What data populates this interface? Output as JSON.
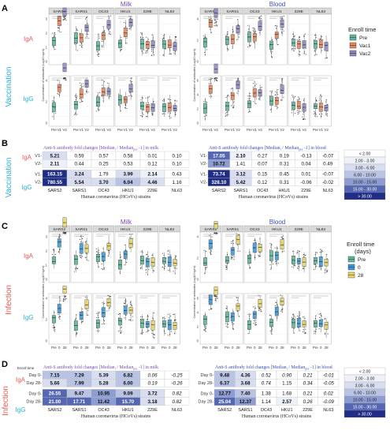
{
  "panels": {
    "A": {
      "letter": "A",
      "side": "Vaccination",
      "milk_title": "Milk",
      "blood_title": "Blood"
    },
    "B": {
      "letter": "B",
      "side": "Vaccination"
    },
    "C": {
      "letter": "C",
      "side": "Infection",
      "milk_title": "Milk",
      "blood_title": "Blood"
    },
    "D": {
      "letter": "D",
      "side": "Infection",
      "enroll_time_label": "Enroll time"
    }
  },
  "strains": [
    "SARS2",
    "SARS1",
    "OC43",
    "HKU1",
    "229E",
    "NL63"
  ],
  "row_labels": {
    "iga": "IgA",
    "igg": "IgG"
  },
  "y_axis_label": "Concentration of antibodies (Log10 ng/ml)",
  "x_axis_label": "Human coronavirus (HCoVs) strains",
  "x_ticks_vac": [
    "Pre",
    "V1",
    "V2"
  ],
  "x_ticks_inf": [
    "Pre",
    "0",
    "28"
  ],
  "legend_A": {
    "title": "Enroll time",
    "items": [
      {
        "label": "Pre",
        "color": "#5fb89a"
      },
      {
        "label": "Vac1",
        "color": "#e8875a"
      },
      {
        "label": "Vac2",
        "color": "#8e87c0"
      }
    ]
  },
  "legend_C": {
    "title": "Enroll time",
    "title2": "(days)",
    "items": [
      {
        "label": "Pre",
        "color": "#5fb89a"
      },
      {
        "label": "0",
        "color": "#3a9ad9"
      },
      {
        "label": "28",
        "color": "#e6d66a"
      }
    ]
  },
  "fold_legend": {
    "items": [
      {
        "label": "< 2.00",
        "color": "#ffffff"
      },
      {
        "label": "2.00 - 3.00",
        "color": "#eef1f9"
      },
      {
        "label": "3.00 - 6.00",
        "color": "#d8def0"
      },
      {
        "label": "6.00 - 10.00",
        "color": "#b9c3e4"
      },
      {
        "label": "10.00 - 15.00",
        "color": "#8d9dd2"
      },
      {
        "label": "15.00 - 30.00",
        "color": "#5567b3"
      },
      {
        "label": "> 30.00",
        "color": "#1f2d85"
      }
    ]
  },
  "chart_data": [
    {
      "type": "table",
      "id": "B-milk",
      "title": "Anti-S antibody fold changes [Median",
      "title_sub": "i",
      "title_mid": " / Median",
      "title_sub2": "pre",
      "title_end": " -1] in milk",
      "row_groups": [
        "IgA",
        "IgG"
      ],
      "rows": [
        {
          "label": "V1-",
          "values": [
            5.21,
            0.59,
            0.57,
            0.58,
            0.01,
            0.1
          ]
        },
        {
          "label": "V2-",
          "values": [
            2.11,
            0.44,
            0.25,
            0.53,
            0.12,
            0.1
          ]
        },
        {
          "label": "V1-",
          "values": [
            163.15,
            3.24,
            1.79,
            3.99,
            2.14,
            0.43
          ]
        },
        {
          "label": "V2-",
          "values": [
            780.55,
            5.54,
            3.7,
            6.04,
            4.46,
            1.16
          ]
        }
      ],
      "columns": [
        "SARS2",
        "SARS1",
        "OC43",
        "HKU1",
        "229E",
        "NL63"
      ]
    },
    {
      "type": "table",
      "id": "B-blood",
      "title": "Anti-S antibody fold changes [Median",
      "title_sub": "i",
      "title_mid": " / Median",
      "title_sub2": "pre",
      "title_end": " -1] in blood",
      "rows": [
        {
          "label": "V1-",
          "values": [
            17.05,
            2.1,
            0.27,
            0.19,
            -0.13,
            -0.07
          ]
        },
        {
          "label": "V2-",
          "values": [
            10.72,
            1.41,
            0.07,
            0.31,
            0.04,
            0.49
          ]
        },
        {
          "label": "V1-",
          "values": [
            73.74,
            3.12,
            0.15,
            0.45,
            0.01,
            -0.07
          ]
        },
        {
          "label": "V2-",
          "values": [
            328.1,
            5.42,
            0.12,
            0.31,
            -0.06,
            -0.02
          ]
        }
      ],
      "columns": [
        "SARS2",
        "SARS1",
        "OC43",
        "HKU1",
        "229E",
        "NL63"
      ]
    },
    {
      "type": "table",
      "id": "D-milk",
      "title": "Anti-S antibody fold changes [Median",
      "title_sub": "i",
      "title_mid": " / Median",
      "title_sub2": "pre",
      "title_end": " -1] in milk",
      "rows": [
        {
          "label": "Day 0-",
          "values": [
            7.15,
            7.29,
            5.39,
            6.82,
            0.06,
            -0.25
          ]
        },
        {
          "label": "Day 28-",
          "values": [
            5.66,
            7.99,
            5.28,
            6.0,
            0.19,
            -0.26
          ]
        },
        {
          "label": "Day 0-",
          "values": [
            26.55,
            9.47,
            10.95,
            9.09,
            3.72,
            0.82
          ]
        },
        {
          "label": "Day 28-",
          "values": [
            21.0,
            17.71,
            11.42,
            15.7,
            3.18,
            0.82
          ]
        }
      ],
      "columns": [
        "SARS2",
        "SARS1",
        "OC43",
        "HKU1",
        "229E",
        "NL63"
      ]
    },
    {
      "type": "table",
      "id": "D-blood",
      "title": "Anti-S antibody fold changes [Median",
      "title_sub": "i",
      "title_mid": " / Median",
      "title_sub2": "pre",
      "title_end": " -1] in blood",
      "rows": [
        {
          "label": "Day 0-",
          "values": [
            9.48,
            4.36,
            0.52,
            0.9,
            0.21,
            -0.01
          ]
        },
        {
          "label": "Day 28-",
          "values": [
            6.37,
            3.68,
            0.74,
            1.15,
            0.34,
            -0.05
          ]
        },
        {
          "label": "Day 0-",
          "values": [
            12.77,
            7.4,
            1.38,
            1.68,
            0.21,
            0.02
          ]
        },
        {
          "label": "Day 28-",
          "values": [
            25.04,
            12.37,
            1.14,
            2.57,
            0.26,
            -0.09
          ]
        }
      ],
      "columns": [
        "SARS2",
        "SARS1",
        "OC43",
        "HKU1",
        "229E",
        "NL63"
      ]
    }
  ],
  "box_summary": {
    "A_milk_iga_medians": [
      [
        1.0,
        1.9,
        2.1
      ],
      [
        0.7,
        0.8,
        0.9
      ],
      [
        0.4,
        0.5,
        0.5
      ],
      [
        0.6,
        0.7,
        0.7
      ],
      [
        0.3,
        0.3,
        0.3
      ],
      [
        0.3,
        0.4,
        0.4
      ]
    ],
    "A_milk_igg_medians": [
      [
        0.4,
        1.2,
        1.8
      ],
      [
        0.5,
        0.8,
        1.0
      ],
      [
        0.5,
        0.8,
        1.0
      ],
      [
        0.4,
        0.9,
        1.1
      ],
      [
        0.3,
        0.5,
        0.7
      ],
      [
        0.3,
        0.4,
        0.4
      ]
    ],
    "A_blood_iga_medians": [
      [
        1.5,
        3.4,
        3.5
      ],
      [
        1.8,
        2.6,
        2.8
      ],
      [
        2.7,
        3.0,
        3.0
      ],
      [
        2.0,
        2.3,
        2.3
      ],
      [
        1.7,
        1.6,
        1.7
      ],
      [
        1.6,
        1.7,
        1.7
      ]
    ],
    "A_blood_igg_medians": [
      [
        2.2,
        4.3,
        4.8
      ],
      [
        2.3,
        3.0,
        3.3
      ],
      [
        3.5,
        3.7,
        3.7
      ],
      [
        3.2,
        3.4,
        3.4
      ],
      [
        2.8,
        2.8,
        2.8
      ],
      [
        2.5,
        2.6,
        2.6
      ]
    ]
  }
}
